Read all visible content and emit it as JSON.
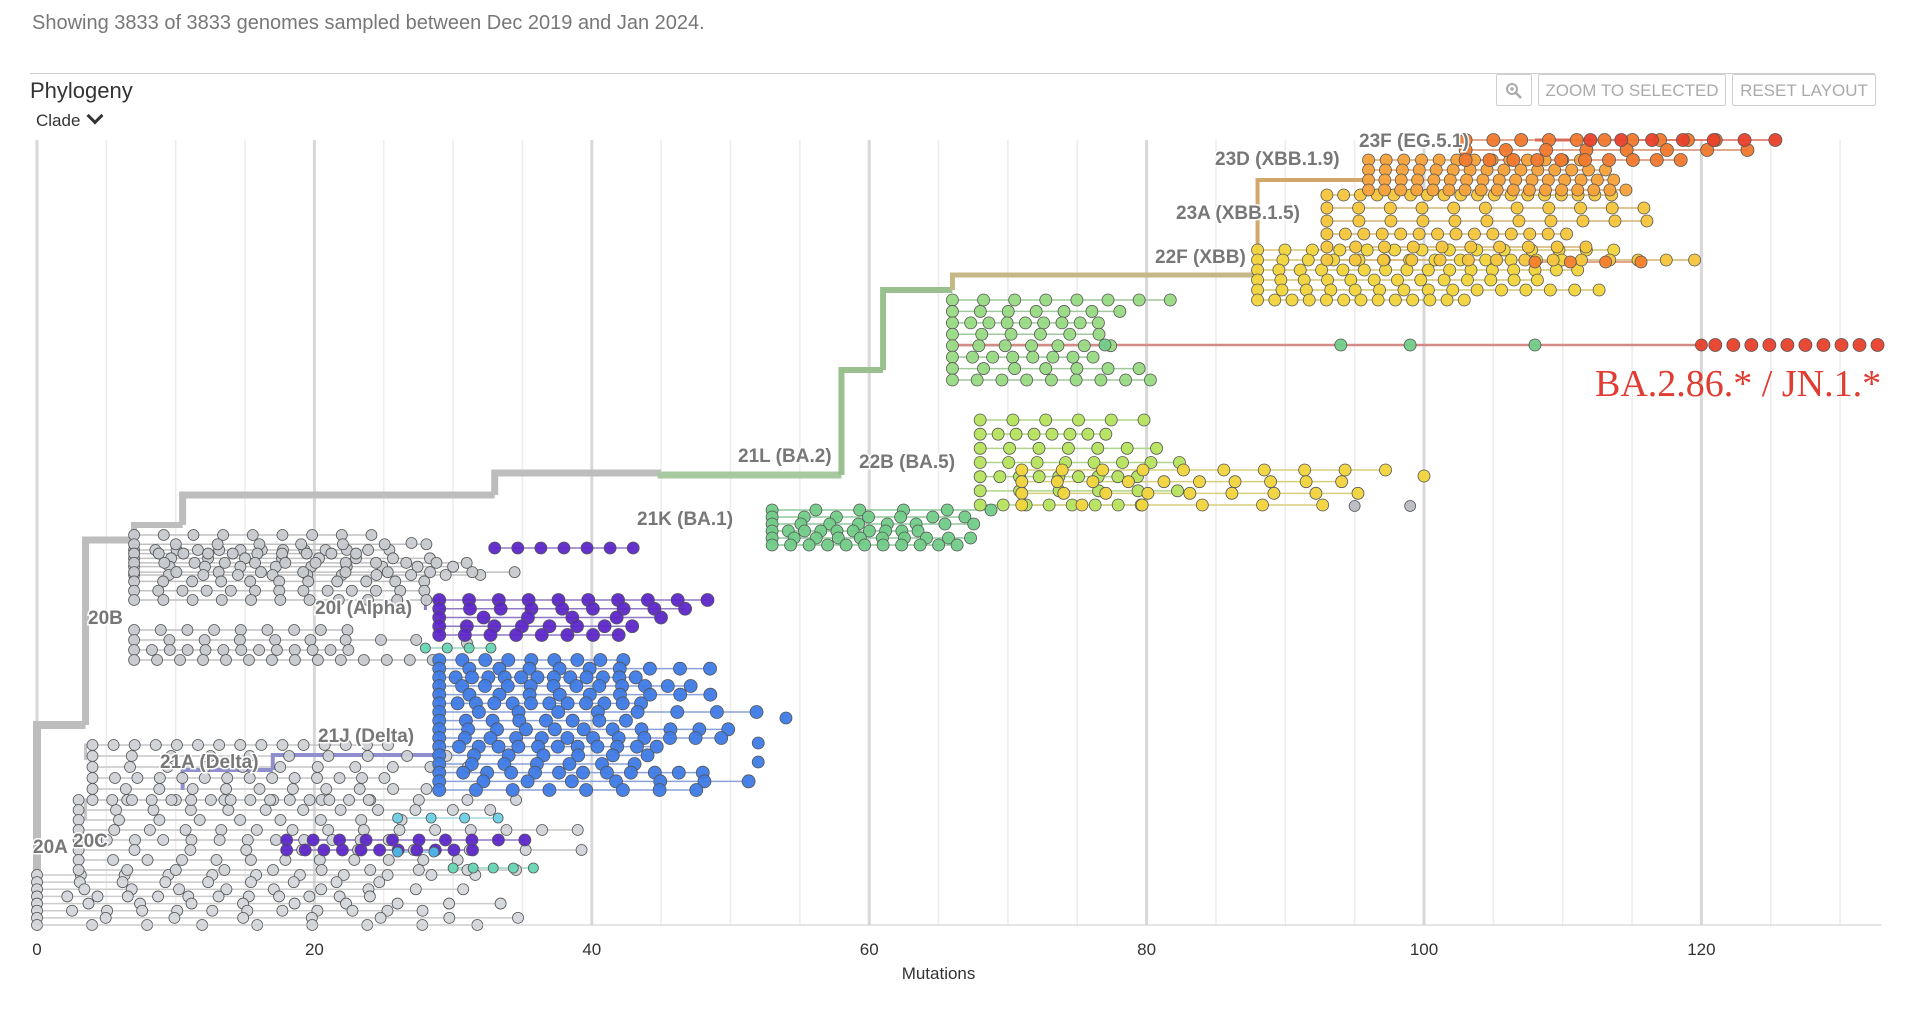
{
  "summary": "Showing 3833 of 3833 genomes sampled between Dec 2019 and Jan 2024.",
  "panel": {
    "title": "Phylogeny",
    "color_by": "Clade",
    "buttons": {
      "zoom_icon": "magnifier-icon",
      "zoom_to_selected": "ZOOM TO SELECTED",
      "reset_layout": "RESET LAYOUT"
    }
  },
  "axis": {
    "label": "Mutations",
    "range": [
      0,
      133
    ],
    "ticks": [
      "0",
      "20",
      "40",
      "60",
      "80",
      "100",
      "120"
    ]
  },
  "annotation": "BA.2.86.* / JN.1.*",
  "colors": {
    "grey": "#c8c8c8",
    "grey_dark": "#a8a8a8",
    "alpha": "#5d27c9",
    "delta": "#3f7be6",
    "teal": "#66d6b4",
    "ba1": "#72cc88",
    "ba2": "#8fd87a",
    "lime": "#b6e35e",
    "yellow": "#f1d43c",
    "orange": "#f6a23a",
    "red": "#e8402a",
    "annotation": "#e03c31"
  },
  "clades": [
    {
      "name": "20A",
      "x": 0.5,
      "color": "grey"
    },
    {
      "name": "20B",
      "x": 4,
      "color": "grey"
    },
    {
      "name": "20C",
      "x": 3,
      "color": "grey"
    },
    {
      "name": "20I (Alpha)",
      "x": 29,
      "color": "alpha"
    },
    {
      "name": "21A (Delta)",
      "x": 17,
      "color": "delta"
    },
    {
      "name": "21J (Delta)",
      "x": 28,
      "color": "delta"
    },
    {
      "name": "21K (BA.1)",
      "x": 50,
      "color": "ba1"
    },
    {
      "name": "21L (BA.2)",
      "x": 58,
      "color": "ba2"
    },
    {
      "name": "22B (BA.5)",
      "x": 62,
      "color": "lime"
    },
    {
      "name": "22F (XBB)",
      "x": 88,
      "color": "yellow"
    },
    {
      "name": "23A (XBB.1.5)",
      "x": 92,
      "color": "yellow"
    },
    {
      "name": "23D (XBB.1.9)",
      "x": 96,
      "color": "orange"
    },
    {
      "name": "23F (EG.5.1)",
      "x": 103,
      "color": "orange"
    }
  ]
}
